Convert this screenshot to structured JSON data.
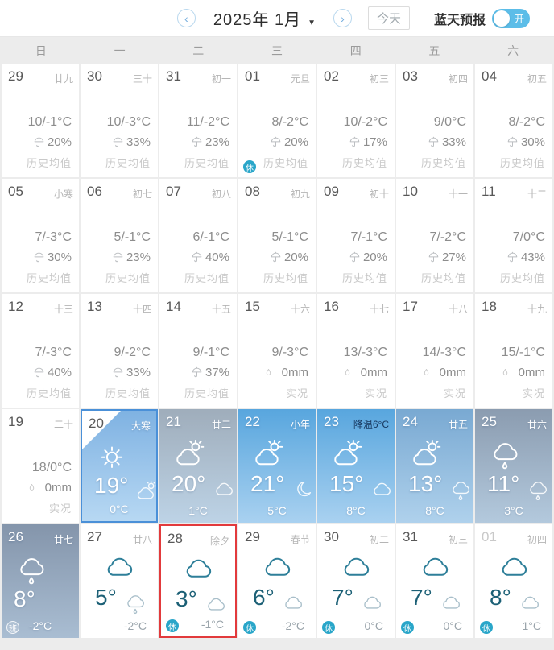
{
  "header": {
    "prev_icon": "‹",
    "next_icon": "›",
    "title": "2025年 1月",
    "caret_icon": "▼",
    "today_button": "今天",
    "blue_sky_label": "蓝天预报",
    "toggle_on_label": "开",
    "toggle_color": "#5cbde8"
  },
  "weekdays": [
    "日",
    "一",
    "二",
    "三",
    "四",
    "五",
    "六"
  ],
  "labels": {
    "hist": "历史均值",
    "actual": "实况"
  },
  "colors": {
    "today_border": "#4a90d8",
    "highlight_border": "#e23a3c",
    "badge_rest": "#2aa6c9",
    "white_cell_accent": "#1c6076"
  },
  "cells": [
    {
      "date": "29",
      "lunar": "廿九",
      "kind": "hist",
      "temp": "10/-1°C",
      "prob": "20%"
    },
    {
      "date": "30",
      "lunar": "三十",
      "kind": "hist",
      "temp": "10/-3°C",
      "prob": "33%"
    },
    {
      "date": "31",
      "lunar": "初一",
      "kind": "hist",
      "temp": "11/-2°C",
      "prob": "23%"
    },
    {
      "date": "01",
      "lunar": "元旦",
      "kind": "hist",
      "temp": "8/-2°C",
      "prob": "20%",
      "badge": "休"
    },
    {
      "date": "02",
      "lunar": "初三",
      "kind": "hist",
      "temp": "10/-2°C",
      "prob": "17%"
    },
    {
      "date": "03",
      "lunar": "初四",
      "kind": "hist",
      "temp": "9/0°C",
      "prob": "33%"
    },
    {
      "date": "04",
      "lunar": "初五",
      "kind": "hist",
      "temp": "8/-2°C",
      "prob": "30%"
    },
    {
      "date": "05",
      "lunar": "小寒",
      "kind": "hist",
      "temp": "7/-3°C",
      "prob": "30%"
    },
    {
      "date": "06",
      "lunar": "初七",
      "kind": "hist",
      "temp": "5/-1°C",
      "prob": "23%"
    },
    {
      "date": "07",
      "lunar": "初八",
      "kind": "hist",
      "temp": "6/-1°C",
      "prob": "40%"
    },
    {
      "date": "08",
      "lunar": "初九",
      "kind": "hist",
      "temp": "5/-1°C",
      "prob": "20%"
    },
    {
      "date": "09",
      "lunar": "初十",
      "kind": "hist",
      "temp": "7/-1°C",
      "prob": "20%"
    },
    {
      "date": "10",
      "lunar": "十一",
      "kind": "hist",
      "temp": "7/-2°C",
      "prob": "27%"
    },
    {
      "date": "11",
      "lunar": "十二",
      "kind": "hist",
      "temp": "7/0°C",
      "prob": "43%"
    },
    {
      "date": "12",
      "lunar": "十三",
      "kind": "hist",
      "temp": "7/-3°C",
      "prob": "40%"
    },
    {
      "date": "13",
      "lunar": "十四",
      "kind": "hist",
      "temp": "9/-2°C",
      "prob": "33%"
    },
    {
      "date": "14",
      "lunar": "十五",
      "kind": "hist",
      "temp": "9/-1°C",
      "prob": "37%"
    },
    {
      "date": "15",
      "lunar": "十六",
      "kind": "actual",
      "temp": "9/-3°C",
      "precip": "0mm"
    },
    {
      "date": "16",
      "lunar": "十七",
      "kind": "actual",
      "temp": "13/-3°C",
      "precip": "0mm"
    },
    {
      "date": "17",
      "lunar": "十八",
      "kind": "actual",
      "temp": "14/-3°C",
      "precip": "0mm"
    },
    {
      "date": "18",
      "lunar": "十九",
      "kind": "actual",
      "temp": "15/-1°C",
      "precip": "0mm"
    },
    {
      "date": "19",
      "lunar": "二十",
      "kind": "actual",
      "temp": "18/0°C",
      "precip": "0mm"
    },
    {
      "date": "20",
      "lunar": "大寒",
      "kind": "blue",
      "icon": "sun",
      "hi": "19°",
      "night": "cloud-sun",
      "lo": "0°C",
      "today": true,
      "bg": [
        "#7fb2e2",
        "#b7d8f3"
      ]
    },
    {
      "date": "21",
      "lunar": "廿二",
      "kind": "blue",
      "icon": "cloud-sun",
      "hi": "20°",
      "night": "cloud",
      "lo": "1°C",
      "bg": [
        "#9fadbb",
        "#bdd3e6"
      ]
    },
    {
      "date": "22",
      "lunar": "小年",
      "kind": "blue",
      "icon": "cloud-sun",
      "hi": "21°",
      "night": "moon",
      "lo": "5°C",
      "bg": [
        "#58a6de",
        "#a9d1f0"
      ]
    },
    {
      "date": "23",
      "lunar": "降温6°C",
      "kind": "blue",
      "icon": "cloud-sun",
      "hi": "15°",
      "night": "cloud",
      "lo": "8°C",
      "lunar_dark": true,
      "bg": [
        "#58a6de",
        "#a9d1f0"
      ]
    },
    {
      "date": "24",
      "lunar": "廿五",
      "kind": "blue",
      "icon": "cloud-sun",
      "hi": "13°",
      "night": "rain",
      "lo": "8°C",
      "bg": [
        "#79a9d2",
        "#afd1ec"
      ]
    },
    {
      "date": "25",
      "lunar": "廿六",
      "kind": "blue",
      "icon": "rain",
      "hi": "11°",
      "night": "rain",
      "lo": "3°C",
      "bg": [
        "#8b9cb0",
        "#b3c9dd"
      ]
    },
    {
      "date": "26",
      "lunar": "廿七",
      "kind": "blue",
      "icon": "rain",
      "hi": "8°",
      "lo": "-2°C",
      "badge": "班",
      "bg": [
        "#8495ab",
        "#a9bdd2"
      ]
    },
    {
      "date": "27",
      "lunar": "廿八",
      "kind": "white",
      "icon": "cloud",
      "hi": "5°",
      "night": "rain",
      "lo": "-2°C"
    },
    {
      "date": "28",
      "lunar": "除夕",
      "kind": "white",
      "icon": "cloud",
      "hi": "3°",
      "night": "cloud",
      "lo": "-1°C",
      "badge": "休",
      "red": true
    },
    {
      "date": "29",
      "lunar": "春节",
      "kind": "white",
      "icon": "cloud",
      "hi": "6°",
      "night": "cloud",
      "lo": "-2°C",
      "badge": "休"
    },
    {
      "date": "30",
      "lunar": "初二",
      "kind": "white",
      "icon": "cloud",
      "hi": "7°",
      "night": "cloud",
      "lo": "0°C",
      "badge": "休"
    },
    {
      "date": "31",
      "lunar": "初三",
      "kind": "white",
      "icon": "cloud",
      "hi": "7°",
      "night": "cloud",
      "lo": "0°C",
      "badge": "休"
    },
    {
      "date": "01",
      "lunar": "初四",
      "kind": "white",
      "icon": "cloud",
      "hi": "8°",
      "night": "cloud",
      "lo": "1°C",
      "badge": "休",
      "dim": true
    }
  ]
}
